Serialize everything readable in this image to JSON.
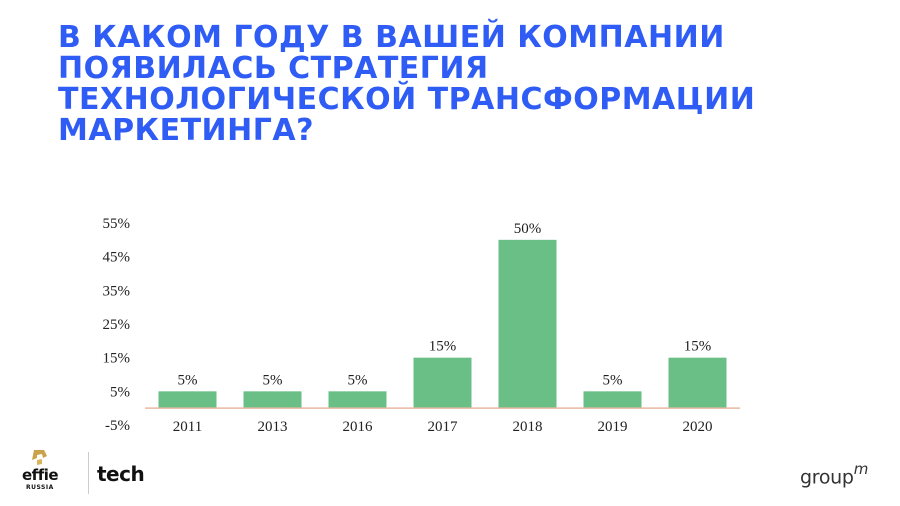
{
  "title_lines": [
    "В КАКОМ ГОДУ В ВАШЕЙ КОМПАНИИ",
    "ПОЯВИЛАСЬ СТРАТЕГИЯ",
    "ТЕХНОЛОГИЧЕСКОЙ ТРАНСФОРМАЦИИ",
    "МАРКЕТИНГА?"
  ],
  "chart_data": {
    "type": "bar",
    "categories": [
      "2011",
      "2013",
      "2016",
      "2017",
      "2018",
      "2019",
      "2020"
    ],
    "values": [
      5,
      5,
      5,
      15,
      50,
      5,
      15
    ],
    "data_labels": [
      "5%",
      "5%",
      "5%",
      "15%",
      "50%",
      "5%",
      "15%"
    ],
    "yticks": [
      "-5%",
      "5%",
      "15%",
      "25%",
      "35%",
      "45%",
      "55%"
    ],
    "ylim": [
      -5,
      55
    ],
    "bar_color": "#6abf87",
    "axis_color": "#e8b9a2",
    "legend": "none",
    "grid": false
  },
  "footer": {
    "effie": "effie",
    "effie_sub": "RUSSIA",
    "tech": "tech",
    "groupm": "group",
    "groupm_sup": "m"
  }
}
